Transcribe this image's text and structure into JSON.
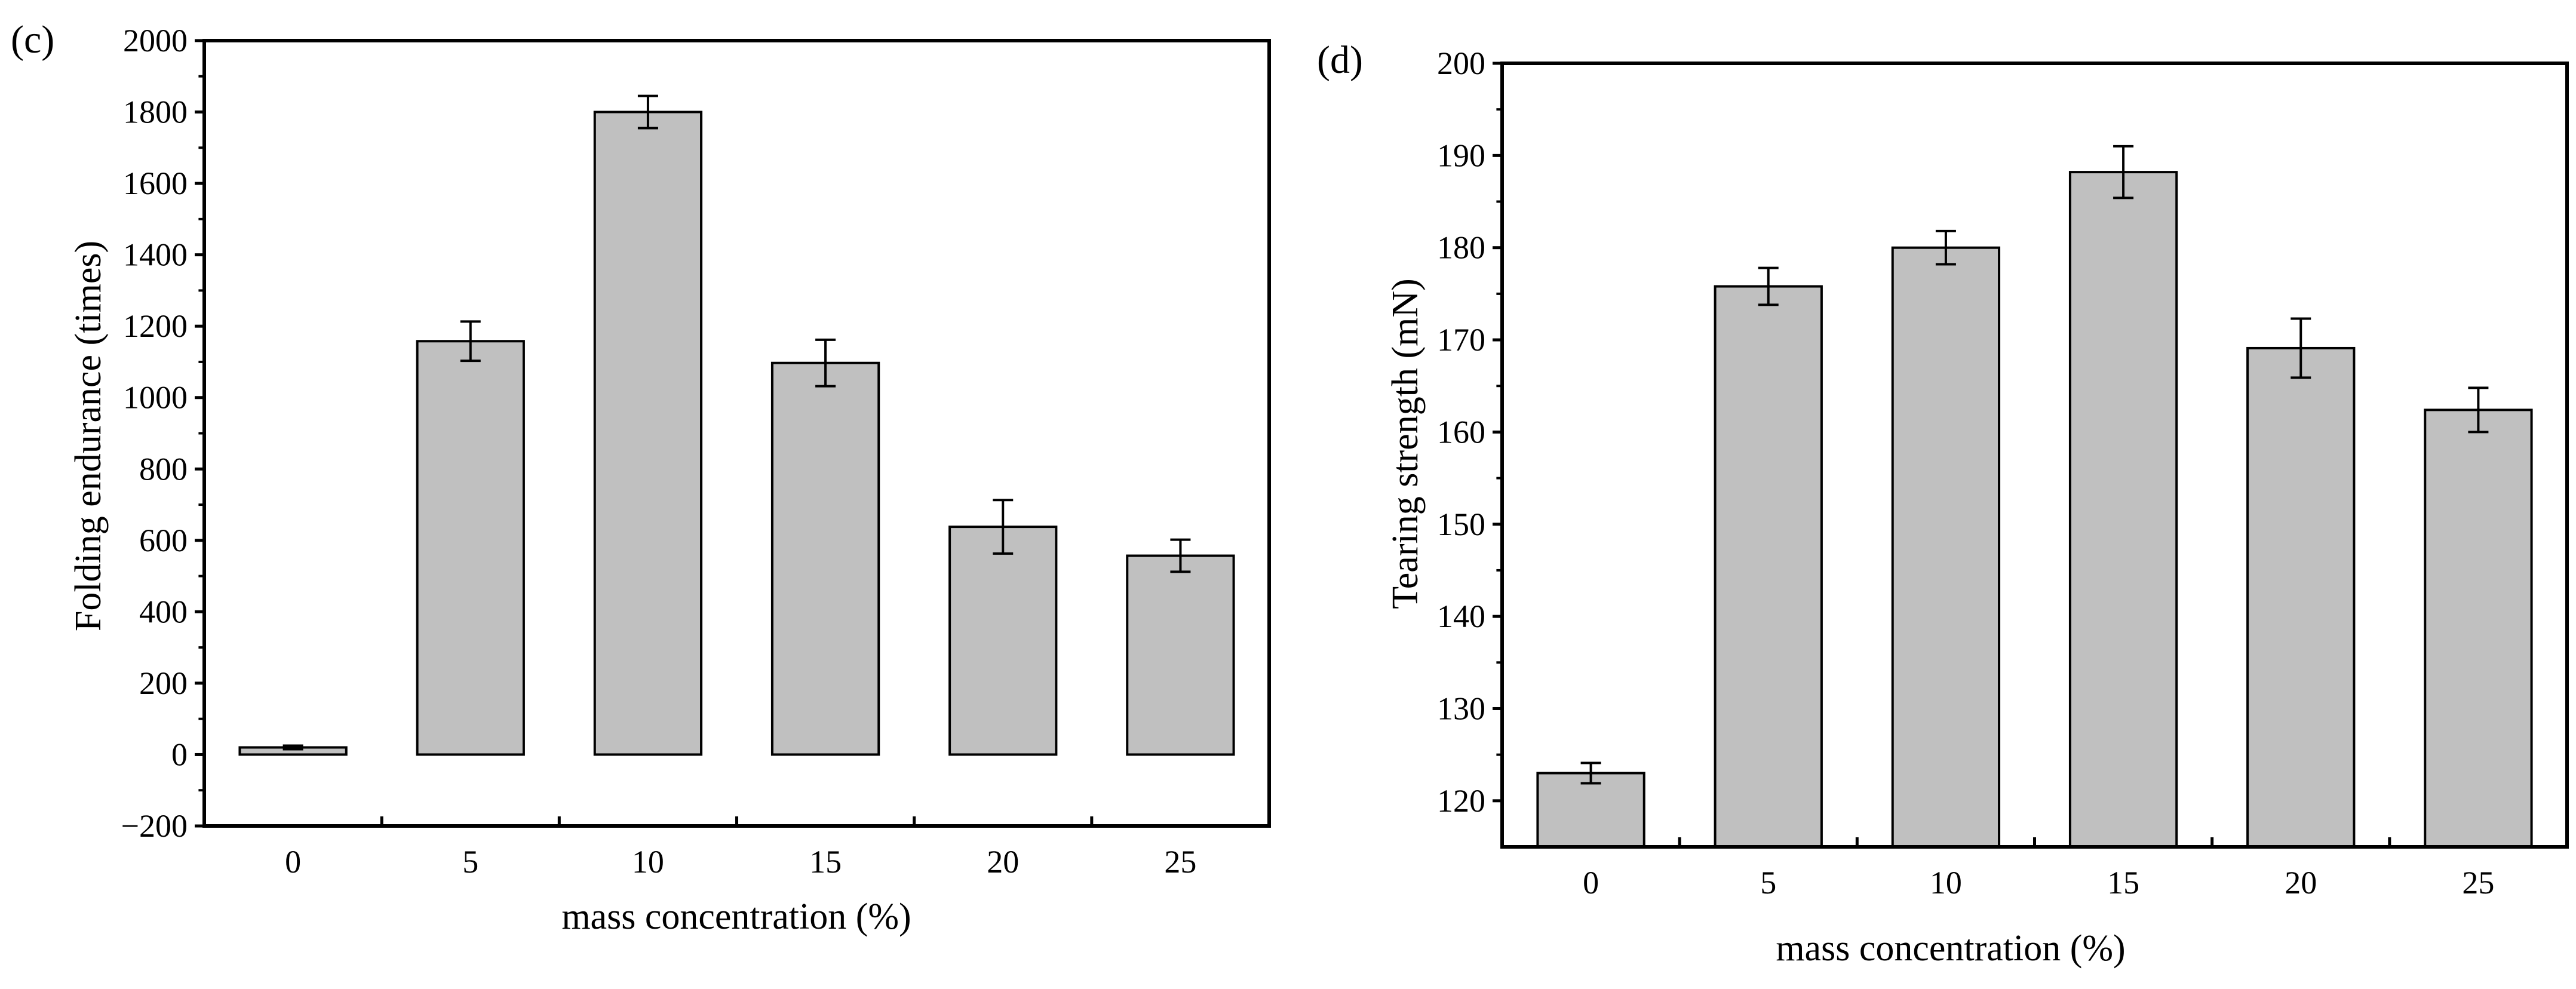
{
  "chart_data": [
    {
      "type": "bar",
      "panel_label": "(c)",
      "categories": [
        "0",
        "5",
        "10",
        "15",
        "20",
        "25"
      ],
      "values": [
        20,
        1158,
        1800,
        1097,
        638,
        557
      ],
      "errors": [
        5,
        55,
        45,
        65,
        75,
        45
      ],
      "xlabel": "mass concentration (%)",
      "ylabel": "Folding endurance (times)",
      "ylim": [
        -200,
        2000
      ],
      "yticks": [
        -200,
        0,
        200,
        400,
        600,
        800,
        1000,
        1200,
        1400,
        1600,
        1800,
        2000
      ],
      "ytick_labels": [
        "−200",
        "0",
        "200",
        "400",
        "600",
        "800",
        "1000",
        "1200",
        "1400",
        "1600",
        "1800",
        "2000"
      ],
      "bar_color": "#c0c0c0",
      "grid": false
    },
    {
      "type": "bar",
      "panel_label": "(d)",
      "categories": [
        "0",
        "5",
        "10",
        "15",
        "20",
        "25"
      ],
      "values": [
        123,
        175.8,
        180,
        188.2,
        169.1,
        162.4
      ],
      "errors": [
        1.1,
        2.0,
        1.8,
        2.8,
        3.2,
        2.4
      ],
      "xlabel": "mass concentration (%)",
      "ylabel": "Tearing strength (mN)",
      "ylim": [
        115,
        200
      ],
      "yticks": [
        120,
        130,
        140,
        150,
        160,
        170,
        180,
        190,
        200
      ],
      "ytick_labels": [
        "120",
        "130",
        "140",
        "150",
        "160",
        "170",
        "180",
        "190",
        "200"
      ],
      "bar_color": "#c0c0c0",
      "grid": false
    }
  ]
}
